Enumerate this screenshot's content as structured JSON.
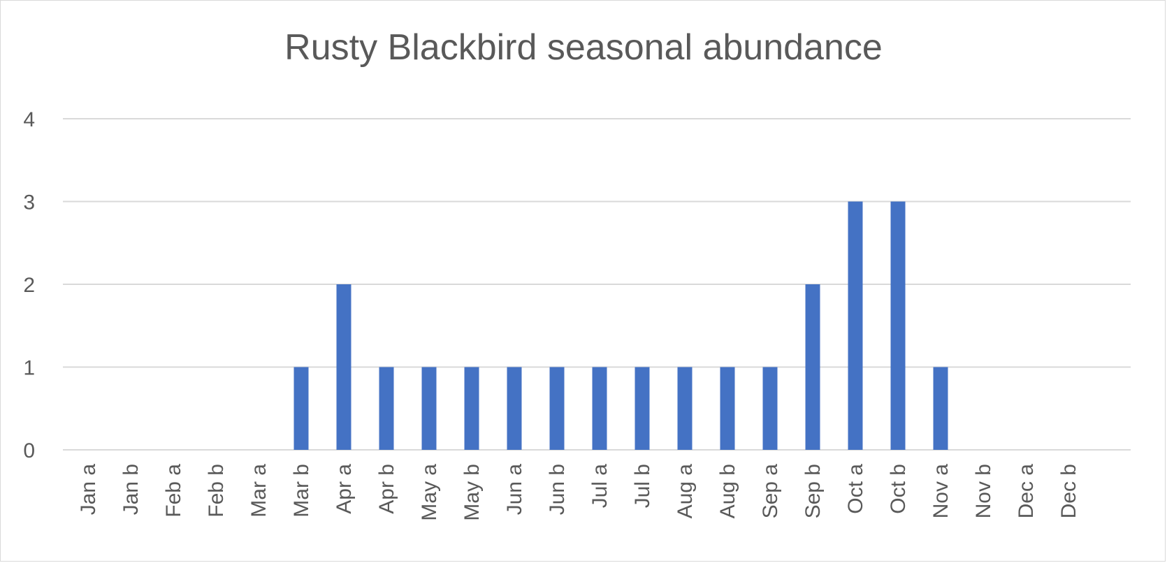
{
  "chart_data": {
    "type": "bar",
    "title": "Rusty Blackbird seasonal abundance",
    "xlabel": "",
    "ylabel": "",
    "categories": [
      "Jan a",
      "Jan b",
      "Feb a",
      "Feb b",
      "Mar a",
      "Mar b",
      "Apr a",
      "Apr b",
      "May a",
      "May b",
      "Jun a",
      "Jun b",
      "Jul a",
      "Jul b",
      "Aug a",
      "Aug b",
      "Sep a",
      "Sep b",
      "Oct a",
      "Oct b",
      "Nov a",
      "Nov b",
      "Dec a",
      "Dec b"
    ],
    "values": [
      0,
      0,
      0,
      0,
      0,
      1,
      2,
      1,
      1,
      1,
      1,
      1,
      1,
      1,
      1,
      1,
      1,
      2,
      3,
      3,
      1,
      0,
      0,
      0
    ],
    "ylim": [
      0,
      4
    ],
    "yticks": [
      0,
      1,
      2,
      3,
      4
    ],
    "grid": true,
    "legend": "none",
    "bar_color": "#4472c4",
    "grid_color": "#d9d9d9"
  }
}
